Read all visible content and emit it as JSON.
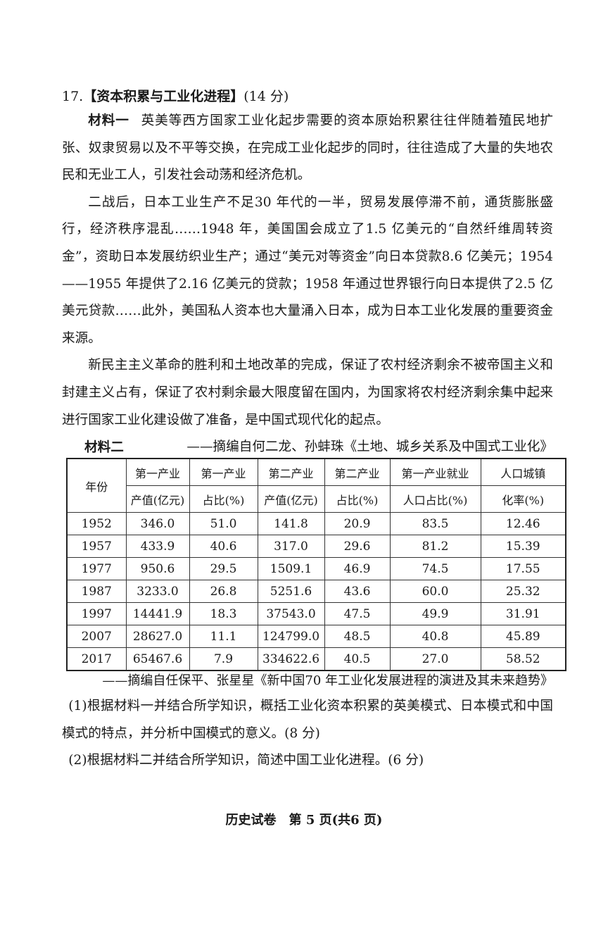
{
  "question": {
    "number": "17.",
    "topic": "【资本积累与工业化进程】",
    "score": "(14 分)"
  },
  "material1": {
    "label": "材料一",
    "p1": "英美等西方国家工业化起步需要的资本原始积累往往伴随着殖民地扩张、奴隶贸易以及不平等交换，在完成工业化起步的同时，往往造成了大量的失地农民和无业工人，引发社会动荡和经济危机。",
    "p2": "二战后，日本工业生产不足30 年代的一半，贸易发展停滞不前，通货膨胀盛行，经济秩序混乱……1948 年，美国国会成立了1.5 亿美元的“自然纤维周转资金”，资助日本发展纺织业生产；通过“美元对等资金”向日本贷款8.6 亿美元；1954——1955 年提供了2.16 亿美元的贷款；1958 年通过世界银行向日本提供了2.5 亿美元贷款……此外，美国私人资本也大量涌入日本，成为日本工业化发展的重要资金来源。",
    "p3": "新民主主义革命的胜利和土地改革的完成，保证了农村经济剩余不被帝国主义和封建主义占有，保证了农村剩余最大限度留在国内，为国家将农村经济剩余集中起来进行国家工业化建设做了准备，是中国式现代化的起点。",
    "source": "——摘编自何二龙、孙蚌珠《土地、城乡关系及中国式工业化》"
  },
  "material2": {
    "label": "材料二",
    "headers": [
      [
        "年份"
      ],
      [
        "第一产业",
        "产值(亿元)"
      ],
      [
        "第一产业",
        "占比(%)"
      ],
      [
        "第二产业",
        "产值(亿元)"
      ],
      [
        "第二产业",
        "占比(%)"
      ],
      [
        "第一产业就业",
        "人口占比(%)"
      ],
      [
        "人口城镇",
        "化率(%)"
      ]
    ],
    "rows": [
      [
        "1952",
        "346.0",
        "51.0",
        "141.8",
        "20.9",
        "83.5",
        "12.46"
      ],
      [
        "1957",
        "433.9",
        "40.6",
        "317.0",
        "29.6",
        "81.2",
        "15.39"
      ],
      [
        "1977",
        "950.6",
        "29.5",
        "1509.1",
        "46.9",
        "74.5",
        "17.55"
      ],
      [
        "1987",
        "3233.0",
        "26.8",
        "5251.6",
        "43.6",
        "60.0",
        "25.32"
      ],
      [
        "1997",
        "14441.9",
        "18.3",
        "37543.0",
        "47.5",
        "49.9",
        "31.91"
      ],
      [
        "2007",
        "28627.0",
        "11.1",
        "124799.0",
        "48.5",
        "40.8",
        "45.89"
      ],
      [
        "2017",
        "65467.6",
        "7.9",
        "334622.6",
        "40.5",
        "27.0",
        "58.52"
      ]
    ],
    "source": "——摘编自任保平、张星星《新中国70 年工业化发展进程的演进及其未来趋势》"
  },
  "questions": [
    "(1)根据材料一并结合所学知识，概括工业化资本积累的英美模式、日本模式和中国模式的特点，并分析中国模式的意义。(8 分)",
    "(2)根据材料二并结合所学知识，简述中国工业化进程。(6 分)"
  ],
  "footer": "历史试卷　第 5 页(共6 页)"
}
